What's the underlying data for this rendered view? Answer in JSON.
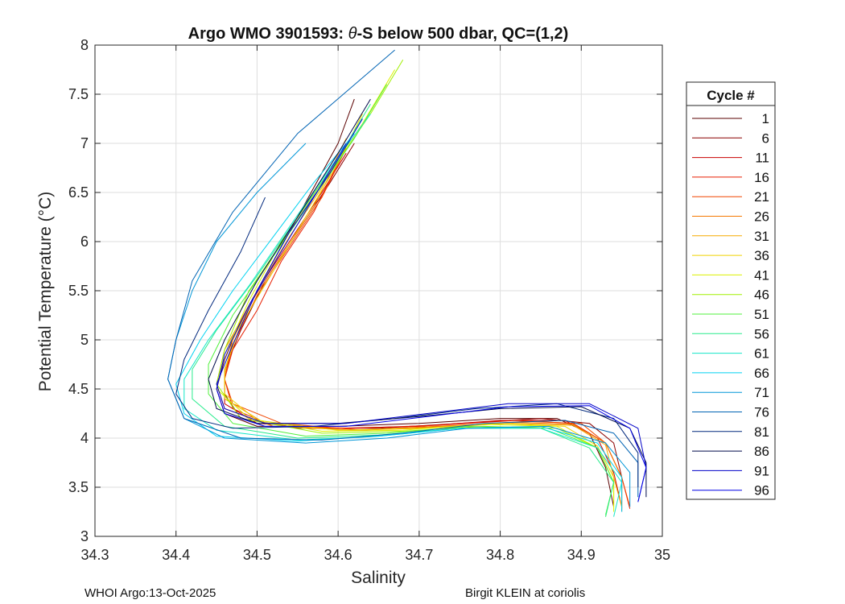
{
  "chart_data": {
    "type": "line",
    "title_prefix": "Argo WMO 3901593: ",
    "title_theta": "θ",
    "title_suffix": "-S below 500 dbar,  QC=(1,2)",
    "xlabel": "Salinity",
    "ylabel": "Potential Temperature (°C)",
    "xlim": [
      34.3,
      35
    ],
    "ylim": [
      3,
      8
    ],
    "xticks": [
      34.3,
      34.4,
      34.5,
      34.6,
      34.7,
      34.8,
      34.9,
      35
    ],
    "xtick_labels": [
      "34.3",
      "34.4",
      "34.5",
      "34.6",
      "34.7",
      "34.8",
      "34.9",
      "35"
    ],
    "yticks": [
      3,
      3.5,
      4,
      4.5,
      5,
      5.5,
      6,
      6.5,
      7,
      7.5,
      8
    ],
    "ytick_labels": [
      "3",
      "3.5",
      "4",
      "4.5",
      "5",
      "5.5",
      "6",
      "6.5",
      "7",
      "7.5",
      "8"
    ],
    "grid": true,
    "legend": {
      "title": "Cycle #",
      "position": "outside-right",
      "entries": [
        {
          "label": "1",
          "color": "#5a0000"
        },
        {
          "label": "6",
          "color": "#8c0000"
        },
        {
          "label": "11",
          "color": "#c80000"
        },
        {
          "label": "16",
          "color": "#e61e00"
        },
        {
          "label": "21",
          "color": "#f04600"
        },
        {
          "label": "26",
          "color": "#f57800"
        },
        {
          "label": "31",
          "color": "#f5aa00"
        },
        {
          "label": "36",
          "color": "#f0d200"
        },
        {
          "label": "41",
          "color": "#dcf000"
        },
        {
          "label": "46",
          "color": "#a0f000"
        },
        {
          "label": "51",
          "color": "#50f03c"
        },
        {
          "label": "56",
          "color": "#28eb8c"
        },
        {
          "label": "61",
          "color": "#14e6c8"
        },
        {
          "label": "66",
          "color": "#00d2f0"
        },
        {
          "label": "71",
          "color": "#0096d7"
        },
        {
          "label": "76",
          "color": "#0064b4"
        },
        {
          "label": "81",
          "color": "#00287d"
        },
        {
          "label": "86",
          "color": "#000a4b"
        },
        {
          "label": "91",
          "color": "#0000c8"
        },
        {
          "label": "96",
          "color": "#0000e6"
        }
      ]
    },
    "series": [
      {
        "name": "1",
        "color": "#5a0000",
        "s": [
          34.62,
          34.6,
          34.56,
          34.52,
          34.48,
          34.46,
          34.45,
          34.46,
          34.5,
          34.6,
          34.7,
          34.8,
          34.87,
          34.91,
          34.93,
          34.94
        ],
        "t": [
          7.45,
          7.0,
          6.4,
          5.8,
          5.2,
          4.8,
          4.5,
          4.25,
          4.12,
          4.12,
          4.15,
          4.2,
          4.2,
          4.05,
          3.7,
          3.3
        ]
      },
      {
        "name": "6",
        "color": "#8c0000",
        "s": [
          34.62,
          34.59,
          34.55,
          34.51,
          34.48,
          34.46,
          34.46,
          34.48,
          34.55,
          34.65,
          34.75,
          34.85,
          34.91,
          34.94,
          34.95,
          34.95
        ],
        "t": [
          7.0,
          6.6,
          6.1,
          5.6,
          5.1,
          4.7,
          4.45,
          4.2,
          4.1,
          4.1,
          4.15,
          4.2,
          4.15,
          3.95,
          3.6,
          3.25
        ]
      },
      {
        "name": "11",
        "color": "#c80000",
        "s": [
          34.61,
          34.58,
          34.54,
          34.5,
          34.47,
          34.46,
          34.46,
          34.5,
          34.6,
          34.7,
          34.8,
          34.88,
          34.92,
          34.94,
          34.95
        ],
        "t": [
          6.9,
          6.5,
          6.0,
          5.5,
          5.0,
          4.6,
          4.35,
          4.15,
          4.1,
          4.12,
          4.18,
          4.18,
          4.0,
          3.65,
          3.3
        ]
      },
      {
        "name": "16",
        "color": "#e61e00",
        "s": [
          34.6,
          34.57,
          34.53,
          34.5,
          34.47,
          34.46,
          34.47,
          34.52,
          34.62,
          34.72,
          34.82,
          34.89,
          34.93,
          34.95,
          34.96
        ],
        "t": [
          6.8,
          6.3,
          5.8,
          5.3,
          4.9,
          4.6,
          4.3,
          4.12,
          4.1,
          4.13,
          4.18,
          4.15,
          3.95,
          3.6,
          3.28
        ]
      },
      {
        "name": "21",
        "color": "#f04600",
        "s": [
          34.61,
          34.58,
          34.54,
          34.5,
          34.47,
          34.46,
          34.47,
          34.53,
          34.63,
          34.73,
          34.83,
          34.9,
          34.93,
          34.95,
          34.96
        ],
        "t": [
          6.95,
          6.45,
          5.95,
          5.45,
          4.95,
          4.6,
          4.35,
          4.15,
          4.08,
          4.12,
          4.17,
          4.15,
          3.95,
          3.6,
          3.3
        ]
      },
      {
        "name": "26",
        "color": "#f57800",
        "s": [
          34.6,
          34.57,
          34.53,
          34.49,
          34.46,
          34.45,
          34.46,
          34.52,
          34.62,
          34.72,
          34.82,
          34.89,
          34.93,
          34.95,
          34.95
        ],
        "t": [
          6.85,
          6.35,
          5.85,
          5.35,
          4.9,
          4.55,
          4.3,
          4.12,
          4.08,
          4.12,
          4.16,
          4.14,
          3.95,
          3.6,
          3.28
        ]
      },
      {
        "name": "31",
        "color": "#f5aa00",
        "s": [
          34.61,
          34.58,
          34.54,
          34.5,
          34.47,
          34.46,
          34.46,
          34.51,
          34.61,
          34.71,
          34.81,
          34.89,
          34.93,
          34.94,
          34.95
        ],
        "t": [
          7.05,
          6.55,
          6.05,
          5.5,
          5.0,
          4.65,
          4.4,
          4.15,
          4.08,
          4.1,
          4.15,
          4.13,
          3.93,
          3.6,
          3.3
        ]
      },
      {
        "name": "36",
        "color": "#f0d200",
        "s": [
          34.63,
          34.6,
          34.56,
          34.52,
          34.48,
          34.46,
          34.46,
          34.5,
          34.6,
          34.7,
          34.8,
          34.88,
          34.92,
          34.94,
          34.94
        ],
        "t": [
          7.3,
          6.8,
          6.25,
          5.7,
          5.15,
          4.7,
          4.45,
          4.18,
          4.08,
          4.1,
          4.15,
          4.12,
          3.92,
          3.6,
          3.3
        ]
      },
      {
        "name": "41",
        "color": "#dcf000",
        "s": [
          34.67,
          34.63,
          34.58,
          34.53,
          34.49,
          34.46,
          34.45,
          34.49,
          34.58,
          34.68,
          34.78,
          34.87,
          34.92,
          34.94,
          34.94
        ],
        "t": [
          7.75,
          7.2,
          6.6,
          6.0,
          5.4,
          4.85,
          4.5,
          4.2,
          4.07,
          4.08,
          4.14,
          4.12,
          3.9,
          3.55,
          3.25
        ]
      },
      {
        "name": "46",
        "color": "#a0f000",
        "s": [
          34.68,
          34.64,
          34.59,
          34.54,
          34.49,
          34.46,
          34.45,
          34.48,
          34.58,
          34.68,
          34.78,
          34.87,
          34.92,
          34.94,
          34.93
        ],
        "t": [
          7.85,
          7.3,
          6.7,
          6.1,
          5.5,
          4.9,
          4.55,
          4.2,
          4.05,
          4.07,
          4.12,
          4.1,
          3.9,
          3.55,
          3.2
        ]
      },
      {
        "name": "51",
        "color": "#50f03c",
        "s": [
          34.66,
          34.62,
          34.57,
          34.52,
          34.47,
          34.44,
          34.44,
          34.47,
          34.56,
          34.66,
          34.76,
          34.86,
          34.92,
          34.94,
          34.93
        ],
        "t": [
          7.6,
          7.05,
          6.45,
          5.85,
          5.25,
          4.75,
          4.45,
          4.15,
          4.02,
          4.05,
          4.12,
          4.1,
          3.9,
          3.55,
          3.22
        ]
      },
      {
        "name": "56",
        "color": "#28eb8c",
        "s": [
          34.64,
          34.6,
          34.55,
          34.5,
          34.45,
          34.42,
          34.42,
          34.46,
          34.55,
          34.65,
          34.75,
          34.85,
          34.91,
          34.94,
          34.93
        ],
        "t": [
          7.4,
          6.85,
          6.25,
          5.65,
          5.1,
          4.7,
          4.4,
          4.12,
          4.0,
          4.03,
          4.1,
          4.1,
          3.9,
          3.55,
          3.2
        ]
      },
      {
        "name": "61",
        "color": "#14e6c8",
        "s": [
          34.64,
          34.59,
          34.54,
          34.49,
          34.44,
          34.41,
          34.41,
          34.45,
          34.55,
          34.65,
          34.75,
          34.85,
          34.92,
          34.95,
          34.94
        ],
        "t": [
          7.3,
          6.75,
          6.15,
          5.55,
          5.0,
          4.6,
          4.3,
          4.08,
          3.98,
          4.02,
          4.1,
          4.1,
          3.9,
          3.55,
          3.2
        ]
      },
      {
        "name": "66",
        "color": "#00d2f0",
        "s": [
          34.62,
          34.57,
          34.52,
          34.47,
          34.43,
          34.4,
          34.41,
          34.45,
          34.55,
          34.65,
          34.75,
          34.85,
          34.92,
          34.95,
          34.95
        ],
        "t": [
          7.1,
          6.6,
          6.05,
          5.5,
          5.0,
          4.55,
          4.25,
          4.02,
          3.97,
          4.02,
          4.1,
          4.12,
          3.95,
          3.6,
          3.25
        ]
      },
      {
        "name": "71",
        "color": "#0096d7",
        "s": [
          34.56,
          34.5,
          34.45,
          34.42,
          34.4,
          34.39,
          34.41,
          34.46,
          34.56,
          34.66,
          34.76,
          34.86,
          34.93,
          34.96,
          34.96
        ],
        "t": [
          7.0,
          6.5,
          6.0,
          5.5,
          5.0,
          4.6,
          4.2,
          4.0,
          3.95,
          4.0,
          4.1,
          4.12,
          3.95,
          3.65,
          3.3
        ]
      },
      {
        "name": "76",
        "color": "#0064b4",
        "s": [
          34.67,
          34.55,
          34.47,
          34.42,
          34.4,
          34.39,
          34.41,
          34.48,
          34.58,
          34.68,
          34.78,
          34.88,
          34.94,
          34.97,
          34.97
        ],
        "t": [
          7.95,
          7.1,
          6.3,
          5.6,
          5.0,
          4.6,
          4.2,
          4.0,
          3.98,
          4.05,
          4.15,
          4.18,
          4.05,
          3.75,
          3.4
        ]
      },
      {
        "name": "81",
        "color": "#00287d",
        "s": [
          34.51,
          34.48,
          34.44,
          34.41,
          34.4,
          34.42,
          34.47,
          34.57,
          34.67,
          34.77,
          34.87,
          34.94,
          34.97,
          34.97
        ],
        "t": [
          6.45,
          5.9,
          5.3,
          4.8,
          4.45,
          4.2,
          4.1,
          4.12,
          4.2,
          4.3,
          4.35,
          4.2,
          3.85,
          3.5
        ]
      },
      {
        "name": "86",
        "color": "#000a4b",
        "s": [
          34.64,
          34.6,
          34.55,
          34.5,
          34.46,
          34.44,
          34.45,
          34.5,
          34.6,
          34.7,
          34.8,
          34.9,
          34.96,
          34.98,
          34.98
        ],
        "t": [
          7.45,
          6.9,
          6.25,
          5.6,
          5.0,
          4.6,
          4.3,
          4.15,
          4.15,
          4.22,
          4.3,
          4.32,
          4.1,
          3.75,
          3.4
        ]
      },
      {
        "name": "91",
        "color": "#0000c8",
        "s": [
          34.63,
          34.59,
          34.54,
          34.5,
          34.47,
          34.45,
          34.46,
          34.51,
          34.61,
          34.71,
          34.81,
          34.91,
          34.97,
          34.98,
          34.97
        ],
        "t": [
          7.25,
          6.7,
          6.1,
          5.5,
          4.95,
          4.55,
          4.3,
          4.15,
          4.15,
          4.25,
          4.35,
          4.35,
          4.1,
          3.7,
          3.35
        ]
      },
      {
        "name": "96",
        "color": "#0000e6",
        "s": [
          34.61,
          34.57,
          34.53,
          34.49,
          34.46,
          34.45,
          34.46,
          34.51,
          34.61,
          34.71,
          34.81,
          34.91,
          34.96,
          34.98,
          34.97
        ],
        "t": [
          7.0,
          6.45,
          5.9,
          5.35,
          4.85,
          4.5,
          4.25,
          4.12,
          4.12,
          4.22,
          4.32,
          4.33,
          4.1,
          3.7,
          3.35
        ]
      }
    ]
  },
  "footer": {
    "left": "WHOI Argo:13-Oct-2025",
    "right": "Birgit KLEIN at coriolis"
  }
}
